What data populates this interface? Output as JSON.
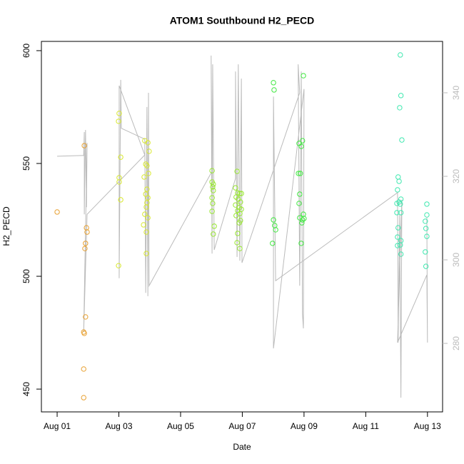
{
  "chart_data": {
    "type": "scatter",
    "title": "ATOM1 Southbound H2_PECD",
    "x_label": "Date",
    "y_label": "H2_PECD",
    "xlim": [
      -0.51,
      12.49
    ],
    "xticks": [
      {
        "value": 0,
        "label": "Aug 01"
      },
      {
        "value": 2,
        "label": "Aug 03"
      },
      {
        "value": 4,
        "label": "Aug 05"
      },
      {
        "value": 6,
        "label": "Aug 07"
      },
      {
        "value": 8,
        "label": "Aug 09"
      },
      {
        "value": 10,
        "label": "Aug 11"
      },
      {
        "value": 12,
        "label": "Aug 13"
      }
    ],
    "ylim": [
      439.9,
      604.1
    ],
    "yticks": [
      450,
      500,
      550,
      600
    ],
    "y2lim": [
      263.6,
      352.3
    ],
    "y2ticks": [
      280,
      300,
      320,
      340
    ],
    "y2_color": "#bbbbbb",
    "series": [
      {
        "type": "scatter",
        "color": "#e8a030",
        "x": [
          0,
          0.88,
          0.95,
          0.97,
          0.92,
          0.9,
          0.92,
          0.86,
          0.88,
          0.86,
          0.86
        ],
        "values": [
          528.5,
          557.9,
          521.5,
          519.6,
          514.6,
          512.3,
          482,
          475.3,
          474.7,
          458.9,
          446.2
        ]
      },
      {
        "type": "scatter",
        "color": "#d8e830",
        "x": [
          1.99,
          2.01,
          2.06,
          2.01,
          2.01,
          2.06,
          1.99,
          2.84,
          2.94,
          2.98,
          2.87,
          2.91,
          2.96,
          2.82,
          2.91,
          2.87,
          2.94,
          2.91,
          2.89,
          2.84,
          2.94,
          2.8,
          2.89,
          2.89
        ],
        "values": [
          568.7,
          572.2,
          552.8,
          543.7,
          541.8,
          533.9,
          504.7,
          560.1,
          559.2,
          555.4,
          549.7,
          549,
          545.6,
          544,
          538.6,
          536.4,
          534.8,
          532.6,
          530.7,
          527.5,
          525.9,
          522.8,
          519.6,
          510.1
        ]
      },
      {
        "type": "scatter",
        "color": "#98e830",
        "x": [
          5.02,
          5.02,
          5.06,
          5.04,
          5.06,
          5.02,
          5.04,
          5.02,
          5.09,
          5.06,
          5.83,
          5.78,
          5.85,
          5.92,
          5.97,
          5.8,
          5.87,
          5.94,
          5.78,
          5.9,
          5.97,
          5.85,
          5.92,
          5.8,
          5.94,
          5.9,
          5.85,
          5.83,
          5.92
        ],
        "values": [
          546.8,
          541.8,
          540.8,
          539.6,
          538,
          534.8,
          532.3,
          528.8,
          522.2,
          518.7,
          546.5,
          539.2,
          537,
          536.7,
          536.7,
          535.1,
          534.2,
          532.9,
          531.6,
          530.4,
          529.7,
          529.1,
          527.8,
          526.9,
          524.7,
          523.7,
          519,
          514.9,
          512.3
        ]
      },
      {
        "type": "scatter",
        "color": "#40e840",
        "x": [
          7.01,
          7.03,
          7.01,
          7.05,
          7.08,
          6.98,
          7.98,
          7.84,
          7.95,
          7.91,
          7.82,
          7.88,
          7.86,
          7.84,
          7.98,
          7.86,
          7.95,
          8.0,
          7.93,
          7.91
        ],
        "values": [
          585.8,
          582.6,
          525,
          522.5,
          520.6,
          514.6,
          588.9,
          558.9,
          560.1,
          557.6,
          545.6,
          545.6,
          536.4,
          532.3,
          527.5,
          525.9,
          525,
          525.6,
          523.7,
          514.6
        ]
      },
      {
        "type": "scatter",
        "color": "#40e8b0",
        "x": [
          11.12,
          11.14,
          11.1,
          11.17,
          11.05,
          11.08,
          11.03,
          11.14,
          11.01,
          11.08,
          11.12,
          11.01,
          11.14,
          11.05,
          11.03,
          11.14,
          11.03,
          11.12,
          11.14,
          11.98,
          11.98,
          11.93,
          11.95,
          11.98,
          11.93,
          11.95
        ],
        "values": [
          598.1,
          580.1,
          574.7,
          560.4,
          544,
          542.1,
          538.3,
          534.2,
          532.3,
          532.9,
          532,
          528.2,
          528.2,
          521.5,
          517.4,
          515.8,
          513.6,
          513.9,
          509.8,
          532,
          527.2,
          524.4,
          521.2,
          517.7,
          510.8,
          504.4
        ]
      },
      {
        "type": "line",
        "axis": "y2",
        "color": "#bbbbbb",
        "x": [
          0,
          0.86,
          0.88,
          0.88,
          0.92,
          0.95,
          0.97,
          0.86,
          0.97,
          2.84,
          2.01,
          2.01,
          2.06,
          2.08,
          2.84,
          2.87,
          2.91,
          2.94,
          2.96,
          2.98,
          5.02,
          4.99,
          5.02,
          5.04,
          5.09,
          5.78,
          5.78,
          5.83,
          5.87,
          5.92,
          5.97,
          5.99,
          7.86,
          7.81,
          7.86,
          7.91,
          7.95,
          7.98,
          8.0,
          7.01,
          7.01,
          7.08,
          11.03,
          11.05,
          11.1,
          11.14,
          11.17,
          11.03,
          11.98,
          12.0,
          11.98
        ],
        "values": [
          324.8,
          325,
          330.6,
          310.9,
          331.1,
          312.6,
          328,
          282.7,
          310.9,
          325.1,
          341.7,
          295.6,
          343.1,
          331.5,
          328.9,
          292.1,
          336.6,
          291.3,
          340,
          293.8,
          321.2,
          348.9,
          301.5,
          346.8,
          302.4,
          319.5,
          345.1,
          300.7,
          346.8,
          299.8,
          343.4,
          299.3,
          340,
          346.8,
          293.8,
          345.1,
          287,
          283.6,
          340.9,
          278.8,
          339.1,
          295,
          316.1,
          280.2,
          310.9,
          267,
          314.4,
          280.2,
          296.4,
          280.2,
          310.1
        ]
      }
    ]
  }
}
